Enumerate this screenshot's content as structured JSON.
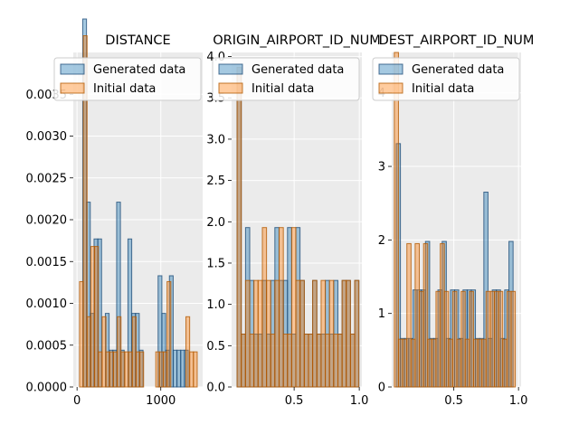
{
  "legend": {
    "generated_label": "Generated data",
    "initial_label": "Initial data"
  },
  "colors": {
    "generated_fill": "#1f77b4",
    "generated_edge": "#1f4e79",
    "initial_fill": "#ff7f0e",
    "initial_edge": "#b35900",
    "background": "#ebebeb"
  },
  "chart_data": [
    {
      "type": "histogram",
      "title": "DISTANCE",
      "xlim": [
        -45,
        1500
      ],
      "ylim": [
        0,
        0.004
      ],
      "xticks": [
        0,
        1000
      ],
      "xtick_labels": [
        "0",
        "1000"
      ],
      "yticks": [
        0,
        0.0005,
        0.001,
        0.0015,
        0.002,
        0.0025,
        0.003,
        0.0035
      ],
      "ytick_labels": [
        "0.0000",
        "0.0005",
        "0.0010",
        "0.0015",
        "0.0020",
        "0.0025",
        "0.0030",
        "0.0035"
      ],
      "series": [
        {
          "name": "Generated data",
          "bin_width": 45,
          "bins": [
            [
              68,
              0.0044
            ],
            [
              113,
              0.00221
            ],
            [
              158,
              0.00088
            ],
            [
              203,
              0.00177
            ],
            [
              248,
              0.00177
            ],
            [
              338,
              0.00088
            ],
            [
              383,
              0.00044
            ],
            [
              428,
              0.00044
            ],
            [
              473,
              0.00221
            ],
            [
              518,
              0.00044
            ],
            [
              608,
              0.00177
            ],
            [
              653,
              0.00088
            ],
            [
              698,
              0.00088
            ],
            [
              743,
              0.00044
            ],
            [
              968,
              0.00133
            ],
            [
              1013,
              0.00088
            ],
            [
              1058,
              0.00044
            ],
            [
              1103,
              0.00133
            ],
            [
              1148,
              0.00044
            ],
            [
              1193,
              0.00044
            ],
            [
              1238,
              0.00044
            ],
            [
              1283,
              0.00044
            ]
          ]
        },
        {
          "name": "Initial data",
          "bin_width": 45,
          "bins": [
            [
              30,
              0.00126
            ],
            [
              75,
              0.0042
            ],
            [
              120,
              0.00084
            ],
            [
              165,
              0.00168
            ],
            [
              210,
              0.00168
            ],
            [
              255,
              0.00042
            ],
            [
              300,
              0.00084
            ],
            [
              345,
              0.00042
            ],
            [
              390,
              0.00042
            ],
            [
              435,
              0.00042
            ],
            [
              480,
              0.00084
            ],
            [
              525,
              0.00042
            ],
            [
              570,
              0.00042
            ],
            [
              615,
              0.00042
            ],
            [
              660,
              0.00084
            ],
            [
              705,
              0.00042
            ],
            [
              750,
              0.00042
            ],
            [
              940,
              0.00042
            ],
            [
              985,
              0.00042
            ],
            [
              1030,
              0.00042
            ],
            [
              1075,
              0.00126
            ],
            [
              1300,
              0.00084
            ],
            [
              1345,
              0.00042
            ],
            [
              1390,
              0.00042
            ]
          ]
        }
      ],
      "legend_position": "upper-right"
    },
    {
      "type": "histogram",
      "title": "ORIGIN_AIRPORT_ID_NUM",
      "xlim": [
        0.02,
        1.02
      ],
      "ylim": [
        0,
        4.05
      ],
      "xticks": [
        0.5,
        1.0
      ],
      "xtick_labels": [
        "0.5",
        "1.0"
      ],
      "yticks": [
        0,
        0.5,
        1,
        1.5,
        2,
        2.5,
        3,
        3.5,
        4
      ],
      "ytick_labels": [
        "0.0",
        "0.5",
        "1.0",
        "1.5",
        "2.0",
        "2.5",
        "3.0",
        "3.5",
        "4.0"
      ],
      "series": [
        {
          "name": "Generated data",
          "bin_width": 0.0322,
          "bins": [
            [
              0.062,
              3.87
            ],
            [
              0.094,
              0.64
            ],
            [
              0.127,
              1.93
            ],
            [
              0.159,
              1.29
            ],
            [
              0.191,
              0.64
            ],
            [
              0.223,
              0.64
            ],
            [
              0.256,
              1.29
            ],
            [
              0.288,
              0.64
            ],
            [
              0.32,
              1.29
            ],
            [
              0.352,
              1.93
            ],
            [
              0.385,
              1.29
            ],
            [
              0.417,
              1.29
            ],
            [
              0.449,
              1.93
            ],
            [
              0.481,
              0.64
            ],
            [
              0.513,
              1.93
            ],
            [
              0.546,
              1.29
            ],
            [
              0.578,
              0.64
            ],
            [
              0.61,
              0.64
            ],
            [
              0.642,
              1.29
            ],
            [
              0.675,
              0.64
            ],
            [
              0.707,
              0.64
            ],
            [
              0.739,
              1.29
            ],
            [
              0.771,
              0.64
            ],
            [
              0.804,
              1.29
            ],
            [
              0.836,
              0.64
            ],
            [
              0.868,
              1.29
            ],
            [
              0.9,
              1.29
            ],
            [
              0.933,
              0.64
            ],
            [
              0.965,
              1.29
            ]
          ]
        },
        {
          "name": "Initial data",
          "bin_width": 0.0322,
          "bins": [
            [
              0.062,
              3.87
            ],
            [
              0.094,
              0.64
            ],
            [
              0.127,
              1.29
            ],
            [
              0.159,
              0.64
            ],
            [
              0.191,
              1.29
            ],
            [
              0.223,
              1.29
            ],
            [
              0.256,
              1.93
            ],
            [
              0.288,
              1.29
            ],
            [
              0.32,
              0.64
            ],
            [
              0.352,
              1.29
            ],
            [
              0.385,
              1.93
            ],
            [
              0.417,
              0.64
            ],
            [
              0.449,
              0.64
            ],
            [
              0.481,
              1.93
            ],
            [
              0.513,
              1.29
            ],
            [
              0.546,
              1.29
            ],
            [
              0.578,
              0.64
            ],
            [
              0.61,
              0.64
            ],
            [
              0.642,
              1.29
            ],
            [
              0.675,
              0.64
            ],
            [
              0.707,
              1.29
            ],
            [
              0.739,
              0.64
            ],
            [
              0.771,
              1.29
            ],
            [
              0.804,
              0.64
            ],
            [
              0.836,
              0.64
            ],
            [
              0.868,
              1.29
            ],
            [
              0.9,
              1.29
            ],
            [
              0.933,
              0.64
            ],
            [
              0.965,
              1.29
            ]
          ]
        }
      ],
      "legend_position": "upper-right"
    },
    {
      "type": "histogram",
      "title": "DEST_AIRPORT_ID_NUM",
      "xlim": [
        0.02,
        1.02
      ],
      "ylim": [
        0,
        4.55
      ],
      "xticks": [
        0.5,
        1.0
      ],
      "xtick_labels": [
        "0.5",
        "1.0"
      ],
      "yticks": [
        0,
        1,
        2,
        3,
        4
      ],
      "ytick_labels": [
        "0",
        "1",
        "2",
        "3",
        "4"
      ],
      "series": [
        {
          "name": "Generated data",
          "bin_width": 0.0322,
          "bins": [
            [
              0.055,
              3.31
            ],
            [
              0.087,
              0.66
            ],
            [
              0.119,
              0.66
            ],
            [
              0.152,
              0.66
            ],
            [
              0.184,
              1.32
            ],
            [
              0.216,
              1.32
            ],
            [
              0.248,
              1.32
            ],
            [
              0.281,
              1.98
            ],
            [
              0.313,
              0.66
            ],
            [
              0.345,
              0.66
            ],
            [
              0.377,
              1.32
            ],
            [
              0.41,
              1.98
            ],
            [
              0.442,
              0.66
            ],
            [
              0.474,
              1.32
            ],
            [
              0.506,
              1.32
            ],
            [
              0.539,
              0.66
            ],
            [
              0.571,
              1.32
            ],
            [
              0.603,
              1.32
            ],
            [
              0.635,
              1.32
            ],
            [
              0.668,
              0.66
            ],
            [
              0.7,
              0.66
            ],
            [
              0.732,
              2.65
            ],
            [
              0.764,
              0.66
            ],
            [
              0.797,
              1.32
            ],
            [
              0.829,
              1.32
            ],
            [
              0.861,
              0.66
            ],
            [
              0.893,
              1.32
            ],
            [
              0.926,
              1.98
            ]
          ]
        },
        {
          "name": "Initial data",
          "bin_width": 0.0322,
          "bins": [
            [
              0.04,
              4.55
            ],
            [
              0.072,
              0.65
            ],
            [
              0.104,
              0.65
            ],
            [
              0.137,
              1.95
            ],
            [
              0.169,
              0.65
            ],
            [
              0.201,
              1.95
            ],
            [
              0.233,
              1.3
            ],
            [
              0.266,
              1.95
            ],
            [
              0.298,
              0.65
            ],
            [
              0.33,
              0.65
            ],
            [
              0.362,
              1.3
            ],
            [
              0.395,
              1.95
            ],
            [
              0.427,
              1.3
            ],
            [
              0.459,
              0.65
            ],
            [
              0.491,
              1.3
            ],
            [
              0.524,
              0.65
            ],
            [
              0.556,
              1.3
            ],
            [
              0.588,
              0.65
            ],
            [
              0.62,
              1.3
            ],
            [
              0.653,
              0.65
            ],
            [
              0.685,
              0.65
            ],
            [
              0.717,
              0.65
            ],
            [
              0.749,
              1.3
            ],
            [
              0.782,
              1.3
            ],
            [
              0.814,
              1.3
            ],
            [
              0.846,
              1.3
            ],
            [
              0.878,
              0.65
            ],
            [
              0.911,
              1.3
            ],
            [
              0.943,
              1.3
            ]
          ]
        }
      ],
      "legend_position": "upper-right"
    }
  ]
}
